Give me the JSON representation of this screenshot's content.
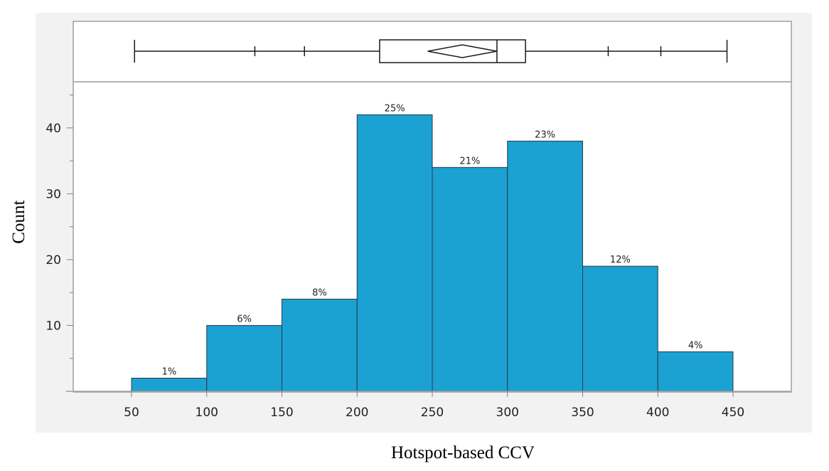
{
  "chart_data": {
    "type": "bar",
    "subtype": "histogram-with-outlier-boxplot",
    "xlabel": "Hotspot-based CCV",
    "ylabel": "Count",
    "xlim": [
      50,
      450
    ],
    "ylim": [
      0,
      47
    ],
    "x_ticks": [
      50,
      100,
      150,
      200,
      250,
      300,
      350,
      400,
      450
    ],
    "y_ticks": [
      10,
      20,
      30,
      40
    ],
    "y_minor_step": 5,
    "bin_edges": [
      50,
      100,
      150,
      200,
      250,
      300,
      350,
      400,
      450
    ],
    "values": [
      2,
      10,
      14,
      42,
      34,
      38,
      19,
      6
    ],
    "percent_labels": [
      "1%",
      "6%",
      "8%",
      "25%",
      "21%",
      "23%",
      "12%",
      "4%"
    ],
    "bar_color": "#1ba1d2",
    "boxplot": {
      "whisker_low": 52,
      "q1": 215,
      "median": 293,
      "q3": 312,
      "whisker_high": 446,
      "mean": 270,
      "mean_diamond_half_width": 23,
      "quantile_ticks": [
        132,
        165,
        367,
        402
      ]
    },
    "grid": false,
    "legend": "none"
  }
}
